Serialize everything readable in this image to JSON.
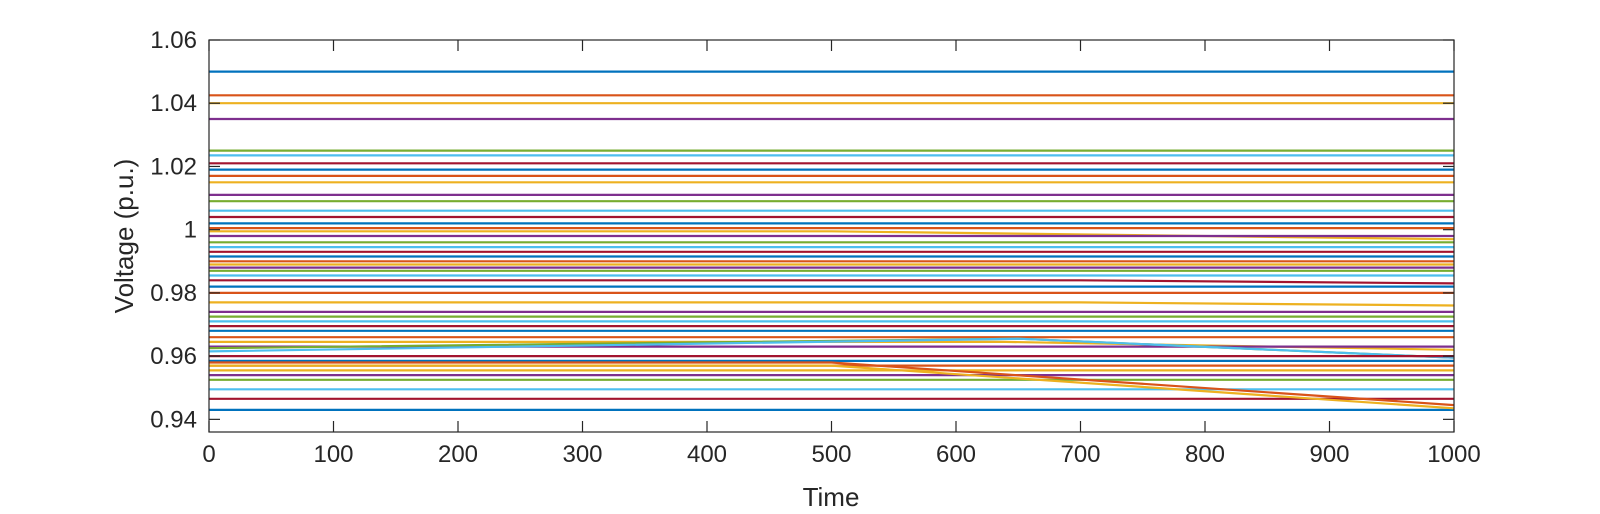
{
  "chart_data": {
    "type": "line",
    "title": "",
    "xlabel": "Time",
    "ylabel": "Voltage (p.u.)",
    "xlim": [
      0,
      1000
    ],
    "ylim": [
      0.936,
      1.06
    ],
    "xticks": [
      0,
      100,
      200,
      300,
      400,
      500,
      600,
      700,
      800,
      900,
      1000
    ],
    "yticks": [
      0.94,
      0.96,
      0.98,
      1.0,
      1.02,
      1.04,
      1.06
    ],
    "xtick_labels": [
      "0",
      "100",
      "200",
      "300",
      "400",
      "500",
      "600",
      "700",
      "800",
      "900",
      "1000"
    ],
    "ytick_labels": [
      "0.94",
      "0.96",
      "0.98",
      "1",
      "1.02",
      "1.04",
      "1.06"
    ],
    "grid": false,
    "legend": "none",
    "colors": [
      "#0072BD",
      "#D95319",
      "#EDB120",
      "#7E2F8E",
      "#77AC30",
      "#4DBEEE",
      "#A2142F"
    ],
    "series": [
      {
        "x": [
          0,
          1000
        ],
        "y": [
          1.05,
          1.05
        ]
      },
      {
        "x": [
          0,
          1000
        ],
        "y": [
          1.0425,
          1.0425
        ]
      },
      {
        "x": [
          0,
          1000
        ],
        "y": [
          1.04,
          1.04
        ]
      },
      {
        "x": [
          0,
          1000
        ],
        "y": [
          1.035,
          1.035
        ]
      },
      {
        "x": [
          0,
          1000
        ],
        "y": [
          1.025,
          1.025
        ]
      },
      {
        "x": [
          0,
          1000
        ],
        "y": [
          1.0235,
          1.0235
        ]
      },
      {
        "x": [
          0,
          1000
        ],
        "y": [
          1.021,
          1.021
        ]
      },
      {
        "x": [
          0,
          1000
        ],
        "y": [
          1.019,
          1.019
        ]
      },
      {
        "x": [
          0,
          1000
        ],
        "y": [
          1.017,
          1.017
        ]
      },
      {
        "x": [
          0,
          1000
        ],
        "y": [
          1.015,
          1.015
        ]
      },
      {
        "x": [
          0,
          1000
        ],
        "y": [
          1.011,
          1.011
        ]
      },
      {
        "x": [
          0,
          1000
        ],
        "y": [
          1.009,
          1.009
        ]
      },
      {
        "x": [
          0,
          1000
        ],
        "y": [
          1.006,
          1.006
        ]
      },
      {
        "x": [
          0,
          1000
        ],
        "y": [
          1.004,
          1.004
        ]
      },
      {
        "x": [
          0,
          1000
        ],
        "y": [
          1.002,
          1.002
        ]
      },
      {
        "x": [
          0,
          1000
        ],
        "y": [
          1.0005,
          1.0005
        ]
      },
      {
        "x": [
          0,
          500,
          1000
        ],
        "y": [
          0.9995,
          0.9995,
          0.997
        ]
      },
      {
        "x": [
          0,
          1000
        ],
        "y": [
          0.998,
          0.998
        ]
      },
      {
        "x": [
          0,
          1000
        ],
        "y": [
          0.996,
          0.996
        ]
      },
      {
        "x": [
          0,
          1000
        ],
        "y": [
          0.9945,
          0.9945
        ]
      },
      {
        "x": [
          0,
          1000
        ],
        "y": [
          0.993,
          0.993
        ]
      },
      {
        "x": [
          0,
          1000
        ],
        "y": [
          0.9915,
          0.9915
        ]
      },
      {
        "x": [
          0,
          1000
        ],
        "y": [
          0.99,
          0.99
        ]
      },
      {
        "x": [
          0,
          1000
        ],
        "y": [
          0.989,
          0.989
        ]
      },
      {
        "x": [
          0,
          1000
        ],
        "y": [
          0.988,
          0.988
        ]
      },
      {
        "x": [
          0,
          1000
        ],
        "y": [
          0.987,
          0.987
        ]
      },
      {
        "x": [
          0,
          1000
        ],
        "y": [
          0.9855,
          0.9855
        ]
      },
      {
        "x": [
          0,
          700,
          1000
        ],
        "y": [
          0.984,
          0.984,
          0.983
        ]
      },
      {
        "x": [
          0,
          1000
        ],
        "y": [
          0.982,
          0.982
        ]
      },
      {
        "x": [
          0,
          1000
        ],
        "y": [
          0.98,
          0.98
        ]
      },
      {
        "x": [
          0,
          700,
          1000
        ],
        "y": [
          0.977,
          0.977,
          0.976
        ]
      },
      {
        "x": [
          0,
          1000
        ],
        "y": [
          0.974,
          0.974
        ]
      },
      {
        "x": [
          0,
          1000
        ],
        "y": [
          0.9725,
          0.9725
        ]
      },
      {
        "x": [
          0,
          1000
        ],
        "y": [
          0.971,
          0.971
        ]
      },
      {
        "x": [
          0,
          1000
        ],
        "y": [
          0.9695,
          0.9695
        ]
      },
      {
        "x": [
          0,
          1000
        ],
        "y": [
          0.968,
          0.968
        ]
      },
      {
        "x": [
          0,
          1000
        ],
        "y": [
          0.966,
          0.966
        ]
      },
      {
        "x": [
          0,
          640,
          1000
        ],
        "y": [
          0.9645,
          0.9645,
          0.962
        ]
      },
      {
        "x": [
          0,
          1000
        ],
        "y": [
          0.963,
          0.963
        ]
      },
      {
        "x": [
          0,
          650,
          1000
        ],
        "y": [
          0.9625,
          0.9655,
          0.9595
        ]
      },
      {
        "x": [
          0,
          650,
          1000
        ],
        "y": [
          0.9615,
          0.9655,
          0.9595
        ]
      },
      {
        "x": [
          0,
          1000
        ],
        "y": [
          0.96,
          0.96
        ]
      },
      {
        "x": [
          0,
          1000
        ],
        "y": [
          0.9585,
          0.9585
        ]
      },
      {
        "x": [
          0,
          1000
        ],
        "y": [
          0.957,
          0.957
        ]
      },
      {
        "x": [
          0,
          1000
        ],
        "y": [
          0.9555,
          0.9555
        ]
      },
      {
        "x": [
          0,
          1000
        ],
        "y": [
          0.954,
          0.954
        ]
      },
      {
        "x": [
          0,
          1000
        ],
        "y": [
          0.9525,
          0.9525
        ]
      },
      {
        "x": [
          0,
          1000
        ],
        "y": [
          0.9495,
          0.9495
        ]
      },
      {
        "x": [
          0,
          1000
        ],
        "y": [
          0.9465,
          0.9465
        ]
      },
      {
        "x": [
          0,
          1000
        ],
        "y": [
          0.943,
          0.943
        ]
      },
      {
        "x": [
          0,
          500,
          1000
        ],
        "y": [
          0.958,
          0.958,
          0.9445
        ]
      },
      {
        "x": [
          0,
          500,
          1000
        ],
        "y": [
          0.957,
          0.957,
          0.9435
        ]
      }
    ]
  }
}
